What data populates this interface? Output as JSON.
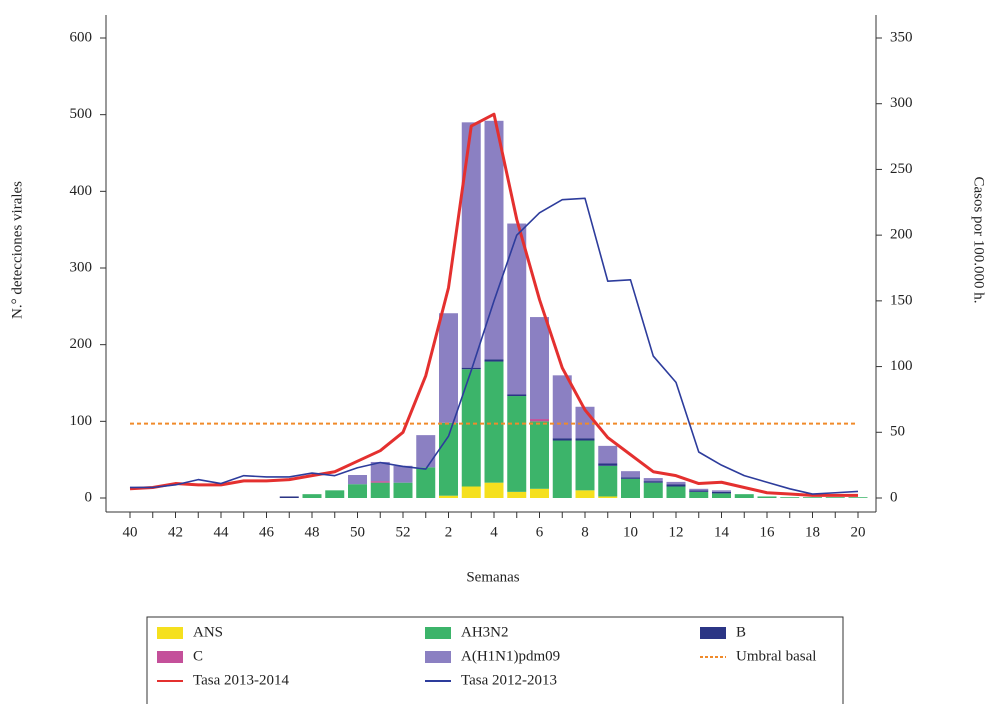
{
  "chart_data": {
    "type": "bar",
    "x_label": "Semanas",
    "y_label": "N.° detecciones virales",
    "y2_label": "Casos por 100.000 h.",
    "categories": [
      "40",
      null,
      "42",
      null,
      "44",
      null,
      "46",
      null,
      "48",
      null,
      "50",
      null,
      "52",
      null,
      "2",
      null,
      "4",
      null,
      "6",
      null,
      "8",
      null,
      "10",
      null,
      "12",
      null,
      "14",
      null,
      "16",
      null,
      "18",
      null,
      "20"
    ],
    "ylim": [
      0,
      600
    ],
    "yticks": [
      0,
      100,
      200,
      300,
      400,
      500,
      600
    ],
    "y2lim": [
      0,
      350
    ],
    "y2ticks": [
      0,
      50,
      100,
      150,
      200,
      250,
      300,
      350
    ],
    "series": [
      {
        "name": "ANS",
        "type": "bar",
        "color": "#f5e01e",
        "values": [
          0,
          0,
          0,
          0,
          0,
          0,
          0,
          0,
          0,
          0,
          0,
          0,
          0,
          0,
          3,
          15,
          20,
          8,
          12,
          0,
          10,
          2,
          0,
          0,
          0,
          0,
          0,
          0,
          0,
          0,
          0,
          0,
          0
        ]
      },
      {
        "name": "AH3N2",
        "type": "bar",
        "color": "#3cb46a",
        "values": [
          0,
          0,
          0,
          0,
          0,
          0,
          0,
          0,
          5,
          10,
          18,
          20,
          20,
          40,
          95,
          153,
          158,
          125,
          88,
          75,
          65,
          40,
          25,
          20,
          15,
          8,
          6,
          5,
          2,
          1,
          1,
          1,
          1
        ]
      },
      {
        "name": "B",
        "type": "bar",
        "color": "#2b3585",
        "values": [
          0,
          0,
          0,
          0,
          0,
          0,
          0,
          2,
          0,
          0,
          0,
          0,
          0,
          0,
          0,
          2,
          3,
          2,
          0,
          3,
          3,
          3,
          2,
          2,
          3,
          2,
          2,
          0,
          0,
          0,
          0,
          0,
          0
        ]
      },
      {
        "name": "C",
        "type": "bar",
        "color": "#c4509a",
        "values": [
          0,
          0,
          0,
          0,
          0,
          0,
          0,
          0,
          0,
          0,
          0,
          2,
          0,
          0,
          0,
          0,
          0,
          0,
          3,
          0,
          0,
          0,
          0,
          0,
          0,
          0,
          0,
          0,
          0,
          0,
          0,
          0,
          0
        ]
      },
      {
        "name": "A(H1N1)pdm09",
        "type": "bar",
        "color": "#8b80c2",
        "values": [
          0,
          0,
          0,
          0,
          0,
          0,
          0,
          0,
          0,
          0,
          12,
          25,
          22,
          42,
          143,
          320,
          311,
          223,
          133,
          82,
          41,
          23,
          8,
          4,
          3,
          2,
          2,
          0,
          0,
          0,
          0,
          0,
          0
        ]
      },
      {
        "name": "Tasa 2013-2014",
        "type": "line",
        "axis": "y2",
        "color": "#e4302f",
        "values": [
          7,
          8,
          11,
          10,
          10,
          13,
          13,
          14,
          17,
          20,
          28,
          36,
          50,
          93,
          160,
          283,
          292,
          212,
          151,
          99,
          67,
          46,
          33,
          20,
          17,
          11,
          12,
          8,
          4,
          3,
          2,
          2,
          2
        ]
      },
      {
        "name": "Tasa 2012-2013",
        "type": "line",
        "axis": "y2",
        "color": "#2d3c9c",
        "values": [
          8,
          8,
          10,
          14,
          11,
          17,
          16,
          16,
          19,
          17,
          23,
          27,
          24,
          22,
          47,
          97,
          150,
          200,
          217,
          227,
          228,
          165,
          166,
          108,
          88,
          35,
          25,
          17,
          12,
          7,
          3,
          4,
          5
        ]
      }
    ],
    "threshold": {
      "name": "Umbral basal",
      "value": 97,
      "color": "#f08a2a"
    }
  }
}
